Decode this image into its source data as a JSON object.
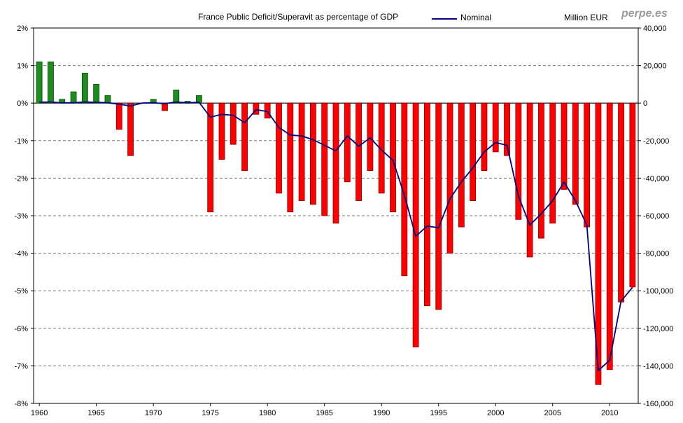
{
  "header": {
    "title": "France Public Deficit/Superavit as percentage of GDP",
    "legend_label": "Nominal",
    "right_axis_title": "Million EUR",
    "watermark": "perpe.es"
  },
  "chart_data": {
    "type": "bar",
    "title": "France Public Deficit/Superavit as percentage of GDP",
    "legend": [
      {
        "name": "Nominal",
        "type": "line",
        "color": "#000080",
        "position": "top"
      }
    ],
    "grid": "horizontal-dashed",
    "years": [
      1960,
      1961,
      1962,
      1963,
      1964,
      1965,
      1966,
      1967,
      1968,
      1969,
      1970,
      1971,
      1972,
      1973,
      1974,
      1975,
      1976,
      1977,
      1978,
      1979,
      1980,
      1981,
      1982,
      1983,
      1984,
      1985,
      1986,
      1987,
      1988,
      1989,
      1990,
      1991,
      1992,
      1993,
      1994,
      1995,
      1996,
      1997,
      1998,
      1999,
      2000,
      2001,
      2002,
      2003,
      2004,
      2005,
      2006,
      2007,
      2008,
      2009,
      2010,
      2011,
      2012
    ],
    "percent_of_gdp": [
      1.1,
      1.1,
      0.1,
      0.3,
      0.8,
      0.5,
      0.2,
      -0.7,
      -1.4,
      0,
      0.1,
      -0.2,
      0.35,
      0.05,
      0.2,
      -2.9,
      -1.5,
      -1.1,
      -1.8,
      -0.3,
      -0.4,
      -2.4,
      -2.9,
      -2.6,
      -2.7,
      -3.0,
      -3.2,
      -2.1,
      -2.6,
      -1.8,
      -2.4,
      -2.9,
      -4.6,
      -6.5,
      -5.4,
      -5.5,
      -4.0,
      -3.3,
      -2.6,
      -1.8,
      -1.3,
      -1.4,
      -3.1,
      -4.1,
      -3.6,
      -3.2,
      -2.3,
      -2.7,
      -3.3,
      -7.5,
      -7.1,
      -5.3,
      -4.9
    ],
    "nominal_million_eur": [
      500,
      600,
      100,
      200,
      600,
      400,
      200,
      -600,
      -1500,
      0,
      150,
      -300,
      600,
      100,
      450,
      -7500,
      -6000,
      -6500,
      -10500,
      -3500,
      -4500,
      -13000,
      -17000,
      -17500,
      -19500,
      -22500,
      -25500,
      -17500,
      -23000,
      -18500,
      -25000,
      -30500,
      -49000,
      -71000,
      -65500,
      -66500,
      -51000,
      -42000,
      -34500,
      -26000,
      -21000,
      -22500,
      -49500,
      -65000,
      -59000,
      -52000,
      -42000,
      -52000,
      -65000,
      -142500,
      -137000,
      -105500,
      -98200
    ],
    "left_axis": {
      "min": -8,
      "max": 2,
      "step": 1,
      "tick_labels": [
        "2%",
        "1%",
        "0%",
        "-1%",
        "-2%",
        "-3%",
        "-4%",
        "-5%",
        "-6%",
        "-7%",
        "-8%"
      ]
    },
    "right_axis": {
      "min": -160000,
      "max": 40000,
      "step": 20000,
      "tick_labels": [
        "40,000",
        "20,000",
        "0",
        "-20,000",
        "-40,000",
        "-60,000",
        "-80,000",
        "-100,000",
        "-120,000",
        "-140,000",
        "-160,000"
      ]
    },
    "x_ticks": [
      {
        "year": 1960,
        "label": "1960"
      },
      {
        "year": 1965,
        "label": "1965"
      },
      {
        "year": 1970,
        "label": "1970"
      },
      {
        "year": 1975,
        "label": "1975"
      },
      {
        "year": 1980,
        "label": "1980"
      },
      {
        "year": 1985,
        "label": "1985"
      },
      {
        "year": 1990,
        "label": "1990"
      },
      {
        "year": 1995,
        "label": "1995"
      },
      {
        "year": 2000,
        "label": "2000"
      },
      {
        "year": 2005,
        "label": "2005"
      },
      {
        "year": 2010,
        "label": "2010"
      }
    ],
    "colors": {
      "positive_bar": "#1E8C1E",
      "positive_bar_border": "#004D00",
      "negative_bar": "#FF0000",
      "negative_bar_border": "#8B0000",
      "line": "#000080",
      "grid": "#7A7A7A",
      "axis": "#000000"
    }
  }
}
